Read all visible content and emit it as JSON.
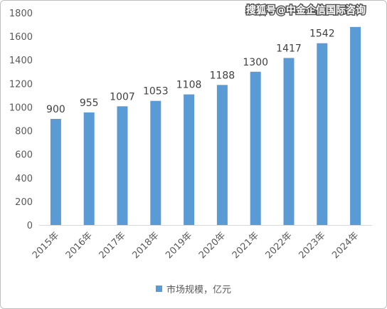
{
  "watermark": "搜狐号@中金企信国际咨询",
  "chart_data": {
    "type": "bar",
    "categories": [
      "2015年",
      "2016年",
      "2017年",
      "2018年",
      "2019年",
      "2020年",
      "2021年",
      "2022年",
      "2023年",
      "2024年"
    ],
    "series": [
      {
        "name": "市场规模，亿元",
        "values": [
          900,
          955,
          1007,
          1053,
          1108,
          1188,
          1300,
          1417,
          1542,
          1680
        ],
        "data_labels": [
          "900",
          "955",
          "1007",
          "1053",
          "1108",
          "1188",
          "1300",
          "1417",
          "1542",
          ""
        ]
      }
    ],
    "ylim": [
      0,
      1800
    ],
    "yticks": [
      0,
      200,
      400,
      600,
      800,
      1000,
      1200,
      1400,
      1600,
      1800
    ],
    "grid": false,
    "legend_position": "bottom",
    "colors": {
      "bar": "#5b9bd5",
      "axis": "#d9d9d9"
    }
  }
}
